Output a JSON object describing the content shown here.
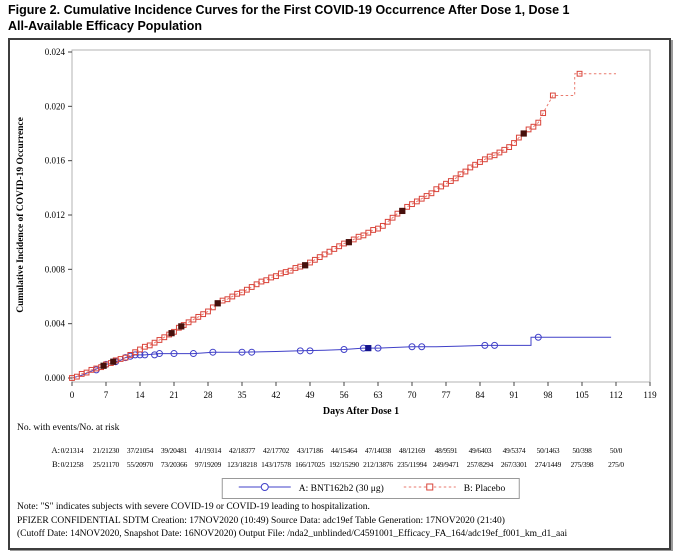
{
  "figure": {
    "title_line1": "Figure 2. Cumulative Incidence Curves for the First COVID-19 Occurrence After Dose 1, Dose 1",
    "title_line2": "All-Available Efficacy Population"
  },
  "chart_data": {
    "type": "line",
    "title": "",
    "xlabel": "Days After Dose 1",
    "ylabel": "Cumulative Incidence of COVID-19 Occurrence",
    "xlim": [
      0,
      119
    ],
    "ylim": [
      0,
      0.024
    ],
    "xticks": [
      0,
      7,
      14,
      21,
      28,
      35,
      42,
      49,
      56,
      63,
      70,
      77,
      84,
      91,
      98,
      105,
      112,
      119
    ],
    "yticks": [
      "0.000",
      "0.004",
      "0.008",
      "0.012",
      "0.016",
      "0.020",
      "0.024"
    ],
    "grid": false,
    "legend_position": "bottom",
    "severe_note_symbol": "S",
    "series": [
      {
        "id": "bnt162b2",
        "name": "A: BNT162b2 (30 μg)",
        "line_color": "#4040c8",
        "marker": "circle",
        "marker_color": "#4040c8",
        "severe_color": "#15158c",
        "dash": false,
        "points": [
          [
            0,
            0.0
          ],
          [
            2,
            0.0002
          ],
          [
            4,
            0.0005
          ],
          [
            6,
            0.0008
          ],
          [
            7,
            0.001
          ],
          [
            8,
            0.0011
          ],
          [
            10,
            0.0013
          ],
          [
            11,
            0.0015
          ],
          [
            12,
            0.0016
          ],
          [
            13,
            0.0017
          ],
          [
            15,
            0.0017
          ],
          [
            18,
            0.0018
          ],
          [
            21,
            0.0018
          ],
          [
            25,
            0.0018
          ],
          [
            29,
            0.0019
          ],
          [
            35,
            0.0019
          ],
          [
            42,
            0.00195
          ],
          [
            47,
            0.002
          ],
          [
            52,
            0.00205
          ],
          [
            56,
            0.0021
          ],
          [
            60,
            0.0022
          ],
          [
            63,
            0.0022
          ],
          [
            70,
            0.0023
          ],
          [
            75,
            0.0023
          ],
          [
            80,
            0.00235
          ],
          [
            85,
            0.0024
          ],
          [
            90,
            0.0024
          ],
          [
            94.5,
            0.0024
          ],
          [
            94.5,
            0.003
          ],
          [
            111,
            0.003
          ]
        ],
        "marker_points": [
          [
            5,
            0.0006
          ],
          [
            7,
            0.001
          ],
          [
            9,
            0.0012
          ],
          [
            11,
            0.0015
          ],
          [
            12,
            0.0016
          ],
          [
            13,
            0.0017
          ],
          [
            14,
            0.0017
          ],
          [
            15,
            0.0017
          ],
          [
            17,
            0.0017
          ],
          [
            18,
            0.0018
          ],
          [
            21,
            0.0018
          ],
          [
            25,
            0.0018
          ],
          [
            29,
            0.0019
          ],
          [
            35,
            0.0019
          ],
          [
            37,
            0.0019
          ],
          [
            47,
            0.002
          ],
          [
            49,
            0.002
          ],
          [
            56,
            0.0021
          ],
          [
            60,
            0.0022
          ],
          [
            63,
            0.0022
          ],
          [
            70,
            0.0023
          ],
          [
            72,
            0.0023
          ],
          [
            85,
            0.0024
          ],
          [
            87,
            0.0024
          ],
          [
            96,
            0.003
          ]
        ],
        "severe_points": [
          [
            61,
            0.0022
          ]
        ]
      },
      {
        "id": "placebo",
        "name": "B: Placebo",
        "line_color": "#ea7a6e",
        "marker": "square",
        "marker_color": "#d9443a",
        "severe_color": "#47100c",
        "dash": true,
        "points": [
          [
            0,
            0.0
          ],
          [
            1,
            0.0001
          ],
          [
            2,
            0.0003
          ],
          [
            3,
            0.0004
          ],
          [
            4,
            0.0006
          ],
          [
            5,
            0.0007
          ],
          [
            6,
            0.0008
          ],
          [
            7,
            0.001
          ],
          [
            8,
            0.0011
          ],
          [
            9,
            0.0013
          ],
          [
            10,
            0.0014
          ],
          [
            11,
            0.0015
          ],
          [
            12,
            0.0017
          ],
          [
            13,
            0.0019
          ],
          [
            14,
            0.0021
          ],
          [
            15,
            0.0023
          ],
          [
            16,
            0.0024
          ],
          [
            17,
            0.0026
          ],
          [
            18,
            0.0028
          ],
          [
            19,
            0.003
          ],
          [
            20,
            0.0032
          ],
          [
            21,
            0.0034
          ],
          [
            22,
            0.0037
          ],
          [
            23,
            0.0039
          ],
          [
            24,
            0.0041
          ],
          [
            25,
            0.0043
          ],
          [
            26,
            0.0045
          ],
          [
            27,
            0.0047
          ],
          [
            28,
            0.0049
          ],
          [
            29,
            0.0052
          ],
          [
            30,
            0.0055
          ],
          [
            31,
            0.0057
          ],
          [
            32,
            0.0058
          ],
          [
            33,
            0.006
          ],
          [
            34,
            0.0062
          ],
          [
            35,
            0.0063
          ],
          [
            36,
            0.0065
          ],
          [
            37,
            0.0067
          ],
          [
            38,
            0.0069
          ],
          [
            39,
            0.0071
          ],
          [
            40,
            0.0072
          ],
          [
            41,
            0.0074
          ],
          [
            42,
            0.0075
          ],
          [
            43,
            0.0077
          ],
          [
            44,
            0.0078
          ],
          [
            45,
            0.0079
          ],
          [
            46,
            0.0081
          ],
          [
            47,
            0.0082
          ],
          [
            48,
            0.0083
          ],
          [
            49,
            0.0085
          ],
          [
            50,
            0.0087
          ],
          [
            51,
            0.0089
          ],
          [
            52,
            0.0091
          ],
          [
            53,
            0.0093
          ],
          [
            54,
            0.0095
          ],
          [
            55,
            0.0097
          ],
          [
            56,
            0.0099
          ],
          [
            57,
            0.01
          ],
          [
            58,
            0.0102
          ],
          [
            59,
            0.0104
          ],
          [
            60,
            0.0105
          ],
          [
            61,
            0.0107
          ],
          [
            62,
            0.0109
          ],
          [
            63,
            0.011
          ],
          [
            64,
            0.0112
          ],
          [
            65,
            0.0115
          ],
          [
            66,
            0.0118
          ],
          [
            67,
            0.0121
          ],
          [
            68,
            0.0123
          ],
          [
            69,
            0.0126
          ],
          [
            70,
            0.0128
          ],
          [
            71,
            0.013
          ],
          [
            72,
            0.0132
          ],
          [
            73,
            0.0134
          ],
          [
            74,
            0.0136
          ],
          [
            75,
            0.0139
          ],
          [
            76,
            0.0141
          ],
          [
            77,
            0.0143
          ],
          [
            78,
            0.0145
          ],
          [
            79,
            0.0147
          ],
          [
            80,
            0.015
          ],
          [
            81,
            0.0152
          ],
          [
            82,
            0.0155
          ],
          [
            83,
            0.0157
          ],
          [
            84,
            0.0159
          ],
          [
            85,
            0.0161
          ],
          [
            86,
            0.0163
          ],
          [
            87,
            0.0164
          ],
          [
            88,
            0.0166
          ],
          [
            89,
            0.0168
          ],
          [
            90,
            0.017
          ],
          [
            91,
            0.0173
          ],
          [
            92,
            0.0177
          ],
          [
            93,
            0.018
          ],
          [
            94,
            0.0183
          ],
          [
            95,
            0.0185
          ],
          [
            96,
            0.0188
          ],
          [
            97,
            0.0195
          ],
          [
            99,
            0.0208
          ],
          [
            103.5,
            0.0208,
            0
          ],
          [
            103.5,
            0.0224,
            0
          ],
          [
            104.5,
            0.0224
          ],
          [
            112,
            0.0224,
            0
          ]
        ],
        "severe_points": [
          [
            6.5,
            0.0009
          ],
          [
            8.5,
            0.0012
          ],
          [
            20.5,
            0.0033
          ],
          [
            22.5,
            0.0038
          ],
          [
            30,
            0.0055
          ],
          [
            48,
            0.0083
          ],
          [
            57,
            0.01
          ],
          [
            68,
            0.0123
          ],
          [
            93,
            0.018
          ]
        ]
      }
    ]
  },
  "risk_table": {
    "caption": "No. with events/No. at risk",
    "rows": [
      {
        "label": "A:",
        "values": [
          "0/21314",
          "21/21230",
          "37/21054",
          "39/20481",
          "41/19314",
          "42/18377",
          "42/17702",
          "43/17186",
          "44/15464",
          "47/14038",
          "48/12169",
          "48/9591",
          "49/6403",
          "49/5374",
          "50/1463",
          "50/398",
          "50/0"
        ]
      },
      {
        "label": "B:",
        "values": [
          "0/21258",
          "25/21170",
          "55/20970",
          "73/20366",
          "97/19209",
          "123/18218",
          "143/17578",
          "166/17025",
          "192/15290",
          "212/13876",
          "235/11994",
          "249/9471",
          "257/8294",
          "267/3301",
          "274/1449",
          "275/398",
          "275/0"
        ]
      }
    ]
  },
  "legend": {
    "items": [
      {
        "label": "A: BNT162b2 (30 μg)"
      },
      {
        "label": "B: Placebo"
      }
    ]
  },
  "notes": [
    "Note: \"S\" indicates subjects with severe COVID-19 or COVID-19 leading to hospitalization.",
    "PFIZER CONFIDENTIAL  SDTM Creation: 17NOV2020 (10:49)  Source Data: adc19ef  Table Generation: 17NOV2020 (21:40)",
    "(Cutoff Date: 14NOV2020, Snapshot Date: 16NOV2020) Output File: /nda2_unblinded/C4591001_Efficacy_FA_164/adc19ef_f001_km_d1_aai"
  ]
}
